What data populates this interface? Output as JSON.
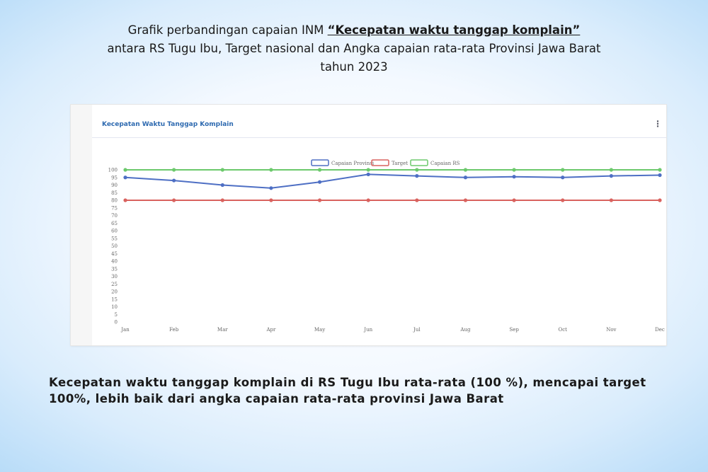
{
  "slide": {
    "title_line1_prefix": "Grafik perbandingan capaian INM ",
    "title_line1_emph": "“Kecepatan waktu tanggap komplain”",
    "title_line2": "antara RS Tugu Ibu, Target nasional dan Angka capaian rata-rata Provinsi Jawa Barat",
    "title_line3": "tahun 2023",
    "conclusion": "Kecepatan waktu tanggap komplain di RS Tugu Ibu rata-rata (100 %), mencapai target 100%, lebih baik dari angka capaian rata-rata provinsi Jawa Barat"
  },
  "card": {
    "title": "Kecepatan Waktu Tanggap Komplain",
    "menu_icon": "vertical-ellipsis-icon"
  },
  "chart_data": {
    "type": "line",
    "categories": [
      "Jan",
      "Feb",
      "Mar",
      "Apr",
      "May",
      "Jun",
      "Jul",
      "Aug",
      "Sep",
      "Oct",
      "Nov",
      "Dec"
    ],
    "series": [
      {
        "name": "Capaian Provinsi",
        "color": "#4e6fc4",
        "values": [
          95,
          93,
          90,
          88,
          92,
          97,
          96,
          95,
          95.5,
          95,
          96,
          96.5
        ]
      },
      {
        "name": "Target",
        "color": "#d9625e",
        "values": [
          80,
          80,
          80,
          80,
          80,
          80,
          80,
          80,
          80,
          80,
          80,
          80
        ]
      },
      {
        "name": "Capaian RS",
        "color": "#6cc96c",
        "values": [
          100,
          100,
          100,
          100,
          100,
          100,
          100,
          100,
          100,
          100,
          100,
          100
        ]
      }
    ],
    "ylim": [
      0,
      100
    ],
    "yticks": [
      0,
      5,
      10,
      15,
      20,
      25,
      30,
      35,
      40,
      45,
      50,
      55,
      60,
      65,
      70,
      75,
      80,
      85,
      90,
      95,
      100
    ],
    "grid": false,
    "legend_position": "top-center",
    "title": "",
    "xlabel": "",
    "ylabel": ""
  }
}
